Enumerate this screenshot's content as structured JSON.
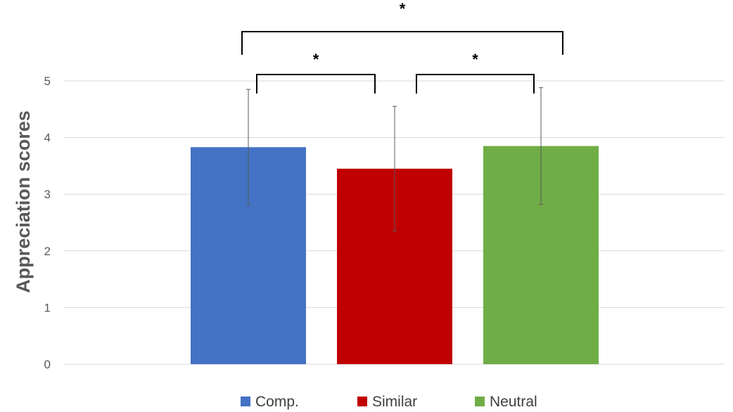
{
  "chart_data": {
    "type": "bar",
    "title": "",
    "xlabel": "",
    "ylabel": "Appreciation scores",
    "ylim": [
      0,
      5
    ],
    "yticks": [
      0,
      1,
      2,
      3,
      4,
      5
    ],
    "grid": true,
    "legend_position": "bottom",
    "categories": [
      "Comp.",
      "Similar",
      "Neutral"
    ],
    "values": [
      3.83,
      3.45,
      3.85
    ],
    "errors": [
      1.02,
      1.1,
      1.03
    ],
    "colors": [
      "#4472C4",
      "#C00000",
      "#70AD47"
    ],
    "significance": [
      {
        "from": 0,
        "to": 1,
        "label": "*"
      },
      {
        "from": 1,
        "to": 2,
        "label": "*"
      },
      {
        "from": 0,
        "to": 2,
        "label": "*"
      }
    ]
  }
}
